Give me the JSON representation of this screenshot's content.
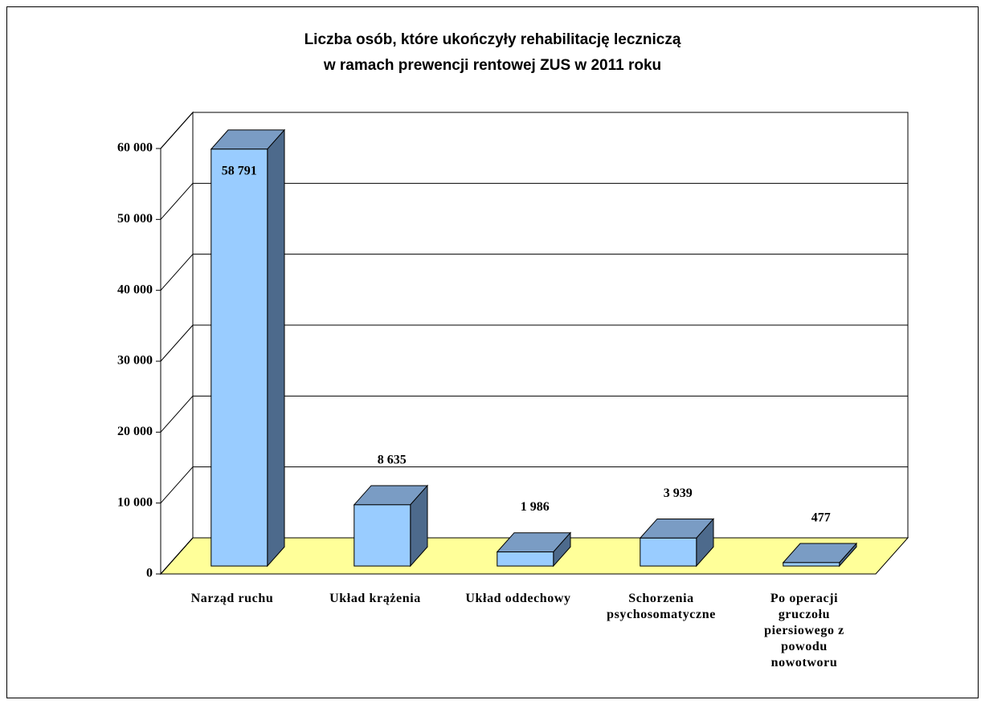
{
  "chart_data": {
    "type": "bar3d",
    "title": [
      "Liczba osób, które ukończyły rehabilitację leczniczą",
      "w ramach prewencji rentowej ZUS w 2011 roku"
    ],
    "categories": [
      "Narząd ruchu",
      "Układ krążenia",
      "Układ oddechowy",
      "Schorzenia psychosomatyczne",
      "Po operacji gruczołu piersiowego z powodu nowotworu"
    ],
    "values": [
      58791,
      8635,
      1986,
      3939,
      477
    ],
    "value_labels": [
      "58 791",
      "8 635",
      "1 986",
      "3 939",
      "477"
    ],
    "color": "#99ccff",
    "ylim": [
      0,
      60000
    ],
    "yticks": [
      {
        "value": 0,
        "label": "0"
      },
      {
        "value": 10000,
        "label": "10 000"
      },
      {
        "value": 20000,
        "label": "20 000"
      },
      {
        "value": 30000,
        "label": "30 000"
      },
      {
        "value": 40000,
        "label": "40 000"
      },
      {
        "value": 50000,
        "label": "50 000"
      },
      {
        "value": 60000,
        "label": "60 000"
      }
    ],
    "grid": true
  }
}
